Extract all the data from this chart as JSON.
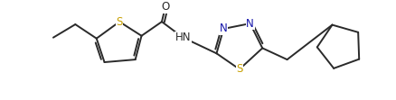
{
  "bg_color": "#ffffff",
  "line_color": "#2a2a2a",
  "atom_colors": {
    "S": "#c8a000",
    "N": "#1414aa",
    "O": "#2a2a2a",
    "H": "#2a2a2a"
  },
  "line_width": 1.4,
  "font_size": 8.5,
  "figsize": [
    4.38,
    1.11
  ],
  "dpi": 100
}
